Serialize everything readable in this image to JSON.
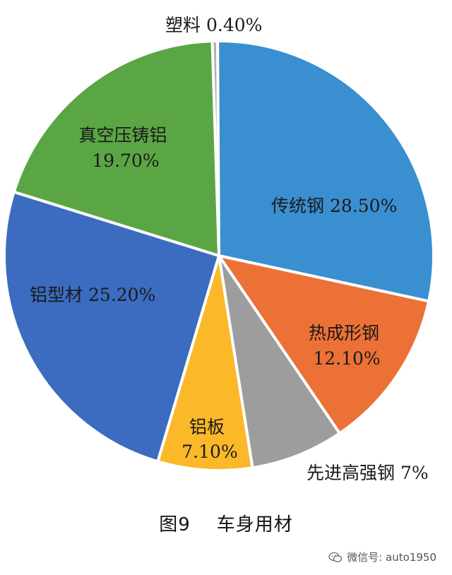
{
  "chart_data": {
    "type": "pie",
    "slices": [
      {
        "label": "塑料",
        "value": 0.4,
        "value_text": "0.40%",
        "color": "#b0b0b0"
      },
      {
        "label": "传统钢",
        "value": 28.5,
        "value_text": "28.50%",
        "color": "#3a8fd0"
      },
      {
        "label": "热成形钢",
        "value": 12.1,
        "value_text": "12.10%",
        "color": "#ec7136"
      },
      {
        "label": "先进高强钢",
        "value": 7.0,
        "value_text": "7%",
        "color": "#9d9d9d"
      },
      {
        "label": "铝板",
        "value": 7.1,
        "value_text": "7.10%",
        "color": "#fbb828"
      },
      {
        "label": "铝型材",
        "value": 25.2,
        "value_text": "25.20%",
        "color": "#3b6cbf"
      },
      {
        "label": "真空压铸铝",
        "value": 19.7,
        "value_text": "19.70%",
        "color": "#5ba644"
      }
    ],
    "start_angle_deg": -1.8,
    "direction": "clockwise"
  },
  "caption": {
    "figure_number": "图9",
    "title": "车身用材"
  },
  "watermark": {
    "text": "微信号: auto1950",
    "icon": "wechat-icon"
  }
}
